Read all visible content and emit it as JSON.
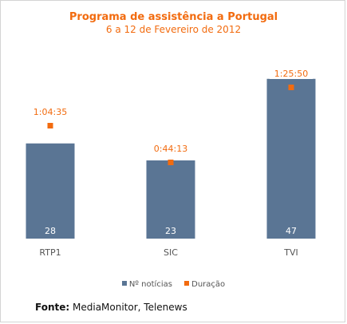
{
  "chart_data": {
    "type": "bar",
    "title": "Programa de assistência a Portugal",
    "subtitle": "6 a 12 de Fevereiro de 2012",
    "categories": [
      "RTP1",
      "SIC",
      "TVI"
    ],
    "series": [
      {
        "name": "Nº notícias",
        "values": [
          28,
          23,
          47
        ],
        "color": "#5a7594"
      },
      {
        "name": "Duração",
        "values": [
          "1:04:35",
          "0:44:13",
          "1:25:50"
        ],
        "seconds": [
          3875,
          2653,
          5150
        ],
        "color": "#f26b0f"
      }
    ],
    "ylim": [
      0,
      50
    ],
    "grid": false,
    "legend": "bottom-center"
  },
  "source": {
    "label": "Fonte:",
    "text": "MediaMonitor, Telenews"
  }
}
